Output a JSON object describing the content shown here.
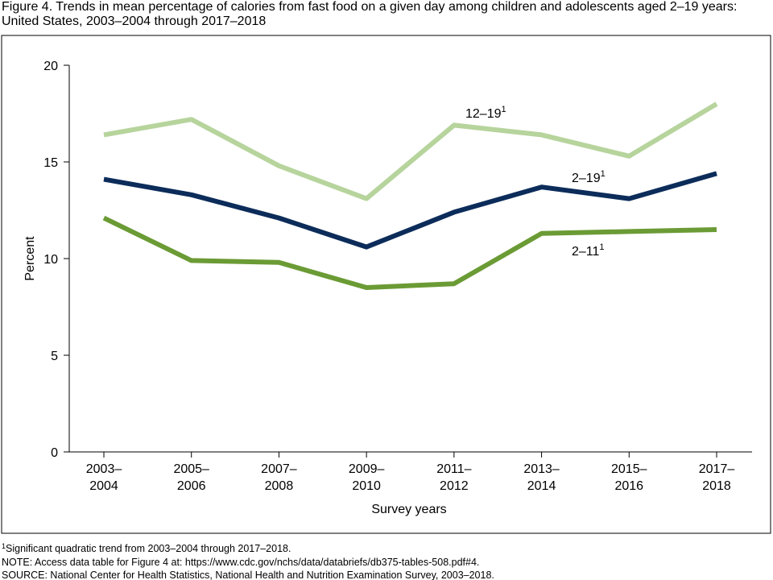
{
  "chart_data": {
    "type": "line",
    "title": "Figure 4. Trends in mean percentage of calories from fast food on a given day among children and adolescents aged 2–19 years: United States, 2003–2004 through 2017–2018",
    "x_label": "Survey years",
    "y_label": "Percent",
    "categories": [
      "2003–2004",
      "2005–2006",
      "2007–2008",
      "2009–2010",
      "2011–2012",
      "2013–2014",
      "2015–2016",
      "2017–2018"
    ],
    "series": [
      {
        "name": "12–19",
        "note": "1",
        "color": "#b6d49c",
        "values": [
          16.4,
          17.2,
          14.8,
          13.1,
          16.9,
          16.4,
          15.3,
          18.0
        ]
      },
      {
        "name": "2–19",
        "note": "1",
        "color": "#0c2c5a",
        "values": [
          14.1,
          13.3,
          12.1,
          10.6,
          12.4,
          13.7,
          13.1,
          14.4
        ]
      },
      {
        "name": "2–11",
        "note": "1",
        "color": "#6b9b35",
        "values": [
          12.1,
          9.9,
          9.8,
          8.5,
          8.7,
          11.3,
          11.4,
          11.5
        ]
      }
    ],
    "ylim": [
      0,
      20
    ],
    "yticks": [
      0,
      5,
      10,
      15,
      20
    ],
    "footnote": {
      "marker": "1",
      "text": "Significant quadratic trend from 2003–2004 through 2017–2018."
    },
    "notes": [
      "NOTE: Access data table for Figure 4 at: https://www.cdc.gov/nchs/data/databriefs/db375-tables-508.pdf#4.",
      "SOURCE: National Center for Health Statistics, National Health and Nutrition Examination Survey, 2003–2018."
    ]
  }
}
